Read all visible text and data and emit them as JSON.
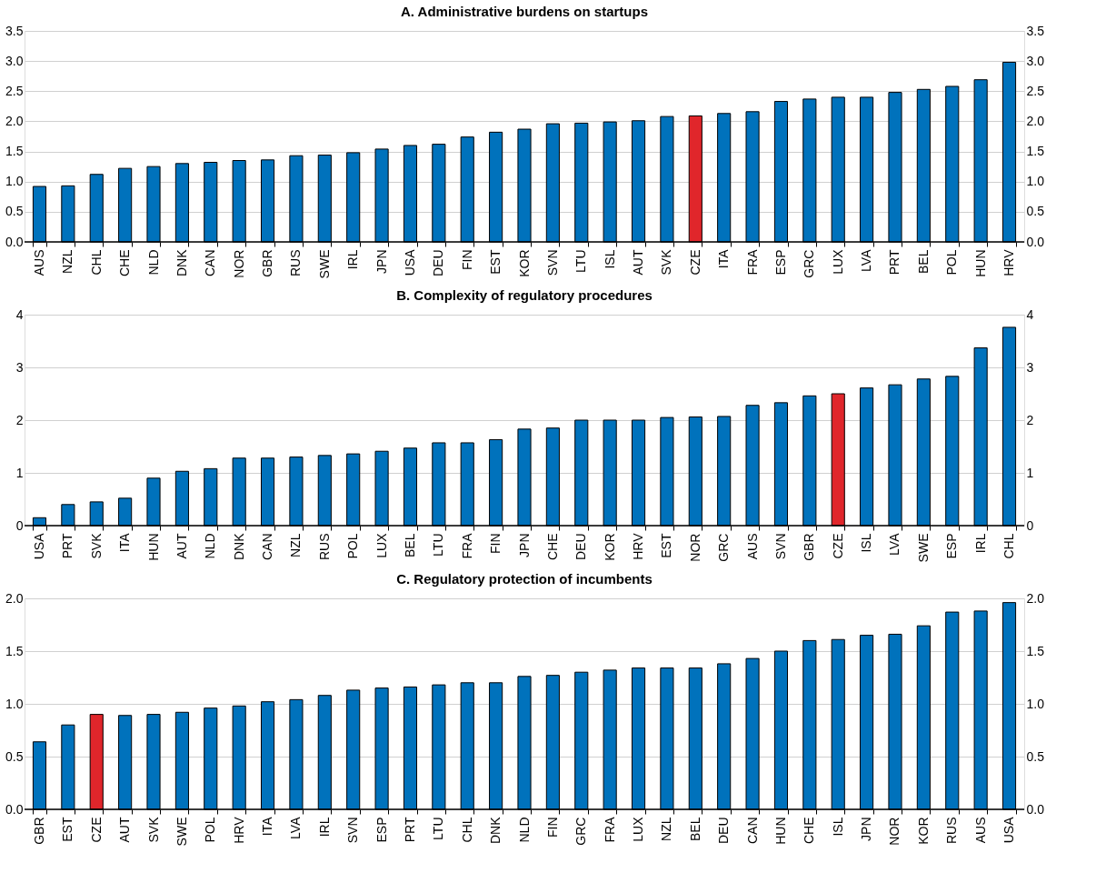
{
  "chart_data": [
    {
      "type": "bar",
      "title": "A. Administrative burdens on startups",
      "categories": [
        "AUS",
        "NZL",
        "CHL",
        "CHE",
        "NLD",
        "DNK",
        "CAN",
        "NOR",
        "GBR",
        "RUS",
        "SWE",
        "IRL",
        "JPN",
        "USA",
        "DEU",
        "FIN",
        "EST",
        "KOR",
        "SVN",
        "LTU",
        "ISL",
        "AUT",
        "SVK",
        "CZE",
        "ITA",
        "FRA",
        "ESP",
        "GRC",
        "LUX",
        "LVA",
        "PRT",
        "BEL",
        "POL",
        "HUN",
        "HRV"
      ],
      "values": [
        0.92,
        0.93,
        1.12,
        1.22,
        1.25,
        1.3,
        1.32,
        1.35,
        1.36,
        1.43,
        1.44,
        1.48,
        1.54,
        1.6,
        1.62,
        1.74,
        1.82,
        1.87,
        1.96,
        1.97,
        1.99,
        2.01,
        2.08,
        2.09,
        2.13,
        2.16,
        2.33,
        2.37,
        2.4,
        2.4,
        2.48,
        2.53,
        2.58,
        2.69,
        2.98
      ],
      "colors": [
        "#0072bc",
        "#0072bc",
        "#0072bc",
        "#0072bc",
        "#0072bc",
        "#0072bc",
        "#0072bc",
        "#0072bc",
        "#0072bc",
        "#0072bc",
        "#0072bc",
        "#0072bc",
        "#0072bc",
        "#0072bc",
        "#0072bc",
        "#0072bc",
        "#0072bc",
        "#0072bc",
        "#0072bc",
        "#0072bc",
        "#0072bc",
        "#0072bc",
        "#0072bc",
        "#e0262b",
        "#0072bc",
        "#0072bc",
        "#0072bc",
        "#0072bc",
        "#0072bc",
        "#0072bc",
        "#0072bc",
        "#0072bc",
        "#0072bc",
        "#0072bc",
        "#0072bc"
      ],
      "ylim": [
        0,
        3.5
      ],
      "yticks": [
        {
          "value": 0,
          "label": "0.0"
        },
        0.5,
        {
          "value": 1,
          "label": "1.0"
        },
        1.5,
        {
          "value": 2,
          "label": "2.0"
        },
        2.5,
        {
          "value": 3,
          "label": "3.0"
        },
        3.5
      ],
      "y2lim": [
        0,
        3.5
      ],
      "y2ticks": [
        {
          "value": 0,
          "label": "0.0"
        },
        0.5,
        {
          "value": 1,
          "label": "1.0"
        },
        1.5,
        {
          "value": 2,
          "label": "2.0"
        },
        2.5,
        {
          "value": 3,
          "label": "3.0"
        },
        3.5
      ],
      "grid": "y"
    },
    {
      "type": "bar",
      "title": "B. Complexity of regulatory procedures",
      "categories": [
        "USA",
        "PRT",
        "SVK",
        "ITA",
        "HUN",
        "AUT",
        "NLD",
        "DNK",
        "CAN",
        "NZL",
        "RUS",
        "POL",
        "LUX",
        "BEL",
        "LTU",
        "FRA",
        "FIN",
        "JPN",
        "CHE",
        "DEU",
        "KOR",
        "HRV",
        "EST",
        "NOR",
        "GRC",
        "AUS",
        "SVN",
        "GBR",
        "CZE",
        "ISL",
        "LVA",
        "SWE",
        "ESP",
        "IRL",
        "CHL"
      ],
      "values": [
        0.15,
        0.4,
        0.45,
        0.52,
        0.9,
        1.03,
        1.08,
        1.28,
        1.28,
        1.3,
        1.33,
        1.36,
        1.41,
        1.47,
        1.57,
        1.57,
        1.63,
        1.83,
        1.85,
        2.0,
        2.0,
        2.0,
        2.05,
        2.06,
        2.07,
        2.28,
        2.33,
        2.46,
        2.5,
        2.61,
        2.67,
        2.78,
        2.83,
        3.37,
        3.76
      ],
      "colors": [
        "#0072bc",
        "#0072bc",
        "#0072bc",
        "#0072bc",
        "#0072bc",
        "#0072bc",
        "#0072bc",
        "#0072bc",
        "#0072bc",
        "#0072bc",
        "#0072bc",
        "#0072bc",
        "#0072bc",
        "#0072bc",
        "#0072bc",
        "#0072bc",
        "#0072bc",
        "#0072bc",
        "#0072bc",
        "#0072bc",
        "#0072bc",
        "#0072bc",
        "#0072bc",
        "#0072bc",
        "#0072bc",
        "#0072bc",
        "#0072bc",
        "#0072bc",
        "#e0262b",
        "#0072bc",
        "#0072bc",
        "#0072bc",
        "#0072bc",
        "#0072bc",
        "#0072bc"
      ],
      "ylim": [
        0,
        4
      ],
      "yticks": [
        0,
        1,
        2,
        3,
        4
      ],
      "y2lim": [
        0,
        4
      ],
      "y2ticks": [
        0,
        1,
        2,
        3,
        4
      ],
      "grid": "y"
    },
    {
      "type": "bar",
      "title": "C. Regulatory protection of incumbents",
      "categories": [
        "GBR",
        "EST",
        "CZE",
        "AUT",
        "SVK",
        "SWE",
        "POL",
        "HRV",
        "ITA",
        "LVA",
        "IRL",
        "SVN",
        "ESP",
        "PRT",
        "LTU",
        "CHL",
        "DNK",
        "NLD",
        "FIN",
        "GRC",
        "FRA",
        "LUX",
        "NZL",
        "BEL",
        "DEU",
        "CAN",
        "HUN",
        "CHE",
        "ISL",
        "JPN",
        "NOR",
        "KOR",
        "RUS",
        "AUS",
        "USA"
      ],
      "values": [
        0.64,
        0.8,
        0.9,
        0.89,
        0.9,
        0.92,
        0.96,
        0.98,
        1.02,
        1.04,
        1.08,
        1.13,
        1.15,
        1.16,
        1.18,
        1.2,
        1.2,
        1.26,
        1.27,
        1.3,
        1.32,
        1.34,
        1.34,
        1.34,
        1.38,
        1.43,
        1.5,
        1.6,
        1.61,
        1.65,
        1.66,
        1.74,
        1.87,
        1.88,
        1.96
      ],
      "colors": [
        "#0072bc",
        "#0072bc",
        "#e0262b",
        "#0072bc",
        "#0072bc",
        "#0072bc",
        "#0072bc",
        "#0072bc",
        "#0072bc",
        "#0072bc",
        "#0072bc",
        "#0072bc",
        "#0072bc",
        "#0072bc",
        "#0072bc",
        "#0072bc",
        "#0072bc",
        "#0072bc",
        "#0072bc",
        "#0072bc",
        "#0072bc",
        "#0072bc",
        "#0072bc",
        "#0072bc",
        "#0072bc",
        "#0072bc",
        "#0072bc",
        "#0072bc",
        "#0072bc",
        "#0072bc",
        "#0072bc",
        "#0072bc",
        "#0072bc",
        "#0072bc",
        "#0072bc"
      ],
      "ylim": [
        0,
        2
      ],
      "yticks": [
        {
          "value": 0,
          "label": "0.0"
        },
        0.5,
        {
          "value": 1,
          "label": "1.0"
        },
        1.5,
        {
          "value": 2,
          "label": "2.0"
        }
      ],
      "y2lim": [
        0,
        2
      ],
      "y2ticks": [
        {
          "value": 0,
          "label": "0.0"
        },
        0.5,
        {
          "value": 1,
          "label": "1.0"
        },
        1.5,
        {
          "value": 2,
          "label": "2.0"
        }
      ],
      "grid": "y"
    }
  ]
}
